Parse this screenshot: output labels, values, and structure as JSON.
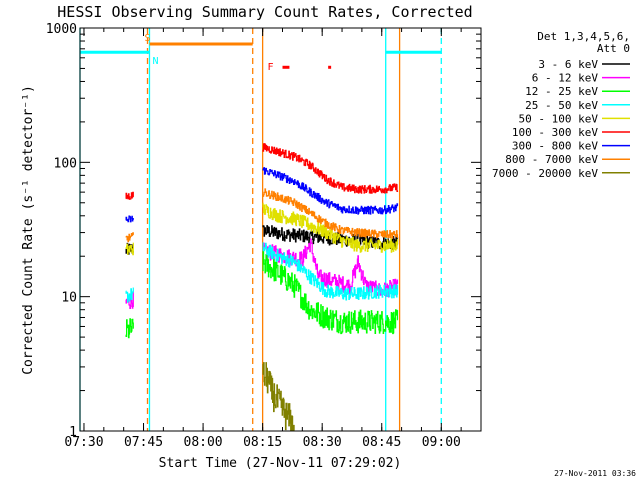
{
  "chart_data": {
    "type": "line",
    "title": "HESSI Observing Summary Count Rates, Corrected",
    "xlabel": "Start Time (27-Nov-11 07:29:02)",
    "ylabel": "Corrected Count Rate (s⁻¹ detector⁻¹)",
    "footer": "27-Nov-2011 03:36",
    "x_unit": "minutes since 07:29:02",
    "xlim": [
      0,
      101
    ],
    "ylim": [
      1,
      1000
    ],
    "yscale": "log",
    "grid": false,
    "x_ticks": [
      {
        "label": "07:30",
        "value": 1
      },
      {
        "label": "07:45",
        "value": 16
      },
      {
        "label": "08:00",
        "value": 31
      },
      {
        "label": "08:15",
        "value": 46
      },
      {
        "label": "08:30",
        "value": 61
      },
      {
        "label": "08:45",
        "value": 76
      },
      {
        "label": "09:00",
        "value": 91
      }
    ],
    "y_ticks": [
      {
        "label": "1",
        "value": 1
      },
      {
        "label": "10",
        "value": 10
      },
      {
        "label": "100",
        "value": 100
      },
      {
        "label": "1000",
        "value": 1000
      }
    ],
    "legend": {
      "placement": "right",
      "title": [
        "Det 1,3,4,5,6,",
        "Att 0"
      ],
      "entries": [
        {
          "label": "3 - 6 keV",
          "color": "#000000"
        },
        {
          "label": "6 - 12 keV",
          "color": "#ff00ff"
        },
        {
          "label": "12 - 25 keV",
          "color": "#00ff00"
        },
        {
          "label": "25 - 50 keV",
          "color": "#00ffff"
        },
        {
          "label": "50 - 100 keV",
          "color": "#e0e000"
        },
        {
          "label": "100 - 300 keV",
          "color": "#ff0000"
        },
        {
          "label": "300 - 800 keV",
          "color": "#0000ff"
        },
        {
          "label": "800 - 7000 keV",
          "color": "#ff8000"
        },
        {
          "label": "7000 - 20000 keV",
          "color": "#808000"
        }
      ]
    },
    "series": [
      {
        "name": "3 - 6 keV",
        "color": "#000000",
        "noise": 0.05,
        "segments": [
          [
            [
              11.5,
              22
            ],
            [
              13.5,
              23
            ]
          ],
          [
            [
              46,
              31
            ],
            [
              52,
              29
            ],
            [
              58,
              28
            ],
            [
              64,
              27
            ],
            [
              70,
              26
            ],
            [
              76,
              25
            ],
            [
              80,
              25
            ]
          ]
        ]
      },
      {
        "name": "6 - 12 keV",
        "color": "#ff00ff",
        "noise": 0.06,
        "segments": [
          [
            [
              11.5,
              9
            ],
            [
              13.5,
              9.5
            ]
          ],
          [
            [
              46,
              22
            ],
            [
              52,
              20
            ],
            [
              56,
              19
            ],
            [
              58,
              25
            ],
            [
              60,
              14
            ],
            [
              64,
              13
            ],
            [
              68,
              12
            ],
            [
              70,
              18
            ],
            [
              72,
              12
            ],
            [
              76,
              11
            ],
            [
              80,
              12
            ]
          ]
        ]
      },
      {
        "name": "12 - 25 keV",
        "color": "#00ff00",
        "noise": 0.09,
        "segments": [
          [
            [
              11.5,
              5.5
            ],
            [
              13.5,
              5.8
            ]
          ],
          [
            [
              46,
              18
            ],
            [
              50,
              15
            ],
            [
              54,
              12
            ],
            [
              58,
              8
            ],
            [
              62,
              7
            ],
            [
              66,
              6.5
            ],
            [
              70,
              6.5
            ],
            [
              76,
              6.5
            ],
            [
              80,
              6.5
            ]
          ]
        ]
      },
      {
        "name": "25 - 50 keV",
        "color": "#00ffff",
        "noise": 0.05,
        "segments": [
          [
            [
              11.5,
              10
            ],
            [
              13.5,
              10.5
            ]
          ],
          [
            [
              46,
              23
            ],
            [
              50,
              20
            ],
            [
              54,
              18
            ],
            [
              58,
              14
            ],
            [
              62,
              11
            ],
            [
              66,
              10.5
            ],
            [
              70,
              10.5
            ],
            [
              76,
              11
            ],
            [
              80,
              11
            ]
          ]
        ]
      },
      {
        "name": "50 - 100 keV",
        "color": "#e0e000",
        "noise": 0.05,
        "segments": [
          [
            [
              11.5,
              22
            ],
            [
              13.5,
              23
            ]
          ],
          [
            [
              46,
              45
            ],
            [
              50,
              40
            ],
            [
              54,
              38
            ],
            [
              58,
              34
            ],
            [
              62,
              30
            ],
            [
              66,
              26
            ],
            [
              70,
              24
            ],
            [
              76,
              24
            ],
            [
              80,
              24
            ]
          ]
        ]
      },
      {
        "name": "100 - 300 keV",
        "color": "#ff0000",
        "noise": 0.03,
        "segments": [
          [
            [
              11.5,
              55
            ],
            [
              13.5,
              57
            ]
          ],
          [
            [
              46,
              130
            ],
            [
              50,
              120
            ],
            [
              54,
              110
            ],
            [
              58,
              95
            ],
            [
              62,
              75
            ],
            [
              66,
              65
            ],
            [
              70,
              63
            ],
            [
              76,
              63
            ],
            [
              80,
              65
            ]
          ]
        ]
      },
      {
        "name": "300 - 800 keV",
        "color": "#0000ff",
        "noise": 0.03,
        "segments": [
          [
            [
              11.5,
              37
            ],
            [
              13.5,
              38
            ]
          ],
          [
            [
              46,
              88
            ],
            [
              50,
              80
            ],
            [
              54,
              72
            ],
            [
              58,
              60
            ],
            [
              62,
              50
            ],
            [
              66,
              45
            ],
            [
              70,
              44
            ],
            [
              76,
              44
            ],
            [
              80,
              46
            ]
          ]
        ]
      },
      {
        "name": "800 - 7000 keV",
        "color": "#ff8000",
        "noise": 0.03,
        "segments": [
          [
            [
              11.5,
              27
            ],
            [
              13.5,
              28
            ]
          ],
          [
            [
              46,
              60
            ],
            [
              50,
              55
            ],
            [
              54,
              50
            ],
            [
              58,
              42
            ],
            [
              62,
              35
            ],
            [
              66,
              31
            ],
            [
              70,
              30
            ],
            [
              76,
              29
            ],
            [
              80,
              29
            ]
          ]
        ]
      },
      {
        "name": "7000 - 20000 keV",
        "color": "#808000",
        "noise": 0.12,
        "segments": [
          [
            [
              46,
              2.6
            ],
            [
              47.5,
              2.4
            ],
            [
              48,
              2
            ],
            [
              50,
              1.6
            ],
            [
              52,
              1.3
            ],
            [
              53,
              1.2
            ],
            [
              54,
              1.0
            ]
          ]
        ]
      }
    ],
    "annotations": {
      "saa_bars": [
        {
          "color": "#00ffff",
          "x0": 0,
          "x1": 17.5,
          "y": 660,
          "label": "N",
          "label_x": 17.5
        },
        {
          "color": "#00ffff",
          "x0": 77,
          "x1": 91,
          "y": 660,
          "label": "",
          "label_x": 77
        }
      ],
      "night_bars": [
        {
          "color": "#ff8000",
          "x0": 17.5,
          "x1": 43.5,
          "y": 760,
          "label": "S",
          "label_x": 15.5
        }
      ],
      "flare_marks": [
        {
          "label": "F",
          "color": "#ff0000",
          "x": 48,
          "y": 520
        },
        {
          "color": "#ff0000",
          "x0": 51,
          "x1": 52.5,
          "y": 510
        },
        {
          "color": "#ff0000",
          "x0": 62.5,
          "x1": 63,
          "y": 510
        }
      ],
      "vlines": [
        {
          "x": 0,
          "color": "#00ffff",
          "style": "solid"
        },
        {
          "x": 17.5,
          "color": "#00ffff",
          "style": "solid"
        },
        {
          "x": 77,
          "color": "#00ffff",
          "style": "solid"
        },
        {
          "x": 91,
          "color": "#00ffff",
          "style": "dashed"
        },
        {
          "x": 17,
          "color": "#ff8000",
          "style": "dashed"
        },
        {
          "x": 43.5,
          "color": "#ff8000",
          "style": "dashed"
        },
        {
          "x": 80.5,
          "color": "#ff8000",
          "style": "solid"
        },
        {
          "x": 46,
          "color": "#ff8000",
          "style": "solid"
        }
      ]
    }
  }
}
